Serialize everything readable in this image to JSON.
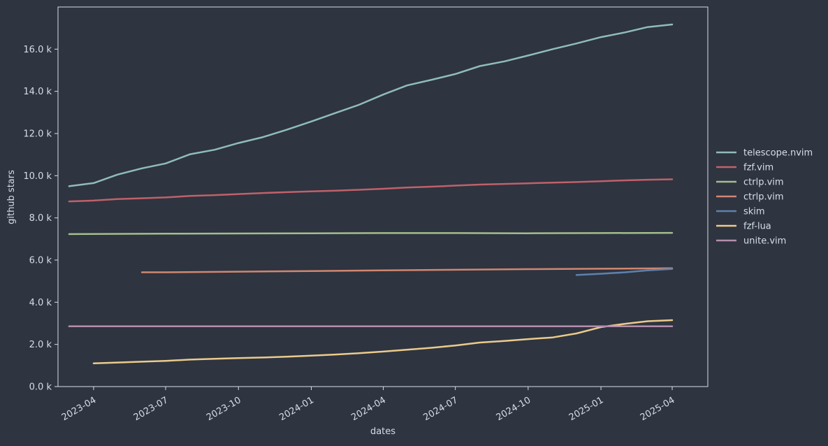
{
  "colors": {
    "background": "#2e3440",
    "axes": "#d8dee9",
    "text": "#d8dee9"
  },
  "chart_data": {
    "type": "line",
    "title": "",
    "xlabel": "dates",
    "ylabel": "github stars",
    "x_ticks": [
      "2023-04",
      "2023-07",
      "2023-10",
      "2024-01",
      "2024-04",
      "2024-07",
      "2024-10",
      "2025-01",
      "2025-04"
    ],
    "y_ticks": [
      "0.0 k",
      "2.0 k",
      "4.0 k",
      "6.0 k",
      "8.0 k",
      "10.0 k",
      "12.0 k",
      "14.0 k",
      "16.0 k"
    ],
    "xlim": [
      "2023-02-15",
      "2025-05-16"
    ],
    "ylim": [
      0,
      18000
    ],
    "grid": false,
    "legend_position": "right",
    "series": [
      {
        "name": "telescope.nvim",
        "color": "#8fbcbb",
        "points": [
          [
            "2023-03-01",
            9500
          ],
          [
            "2023-04-01",
            9650
          ],
          [
            "2023-05-01",
            10050
          ],
          [
            "2023-06-01",
            10350
          ],
          [
            "2023-07-01",
            10580
          ],
          [
            "2023-08-01",
            11020
          ],
          [
            "2023-09-01",
            11230
          ],
          [
            "2023-10-01",
            11550
          ],
          [
            "2023-11-01",
            11830
          ],
          [
            "2023-12-01",
            12180
          ],
          [
            "2024-01-01",
            12570
          ],
          [
            "2024-02-01",
            12980
          ],
          [
            "2024-03-01",
            13360
          ],
          [
            "2024-04-01",
            13850
          ],
          [
            "2024-05-01",
            14280
          ],
          [
            "2024-06-01",
            14550
          ],
          [
            "2024-07-01",
            14820
          ],
          [
            "2024-08-01",
            15200
          ],
          [
            "2024-09-01",
            15420
          ],
          [
            "2024-10-01",
            15700
          ],
          [
            "2024-11-01",
            16000
          ],
          [
            "2024-12-01",
            16270
          ],
          [
            "2025-01-01",
            16570
          ],
          [
            "2025-02-01",
            16800
          ],
          [
            "2025-03-01",
            17050
          ],
          [
            "2025-04-01",
            17170
          ]
        ]
      },
      {
        "name": "fzf.vim",
        "color": "#bf616a",
        "points": [
          [
            "2023-03-01",
            8780
          ],
          [
            "2023-04-01",
            8820
          ],
          [
            "2023-05-01",
            8890
          ],
          [
            "2023-06-01",
            8930
          ],
          [
            "2023-07-01",
            8970
          ],
          [
            "2023-08-01",
            9040
          ],
          [
            "2023-09-01",
            9080
          ],
          [
            "2023-10-01",
            9130
          ],
          [
            "2023-11-01",
            9180
          ],
          [
            "2023-12-01",
            9220
          ],
          [
            "2024-01-01",
            9260
          ],
          [
            "2024-02-01",
            9290
          ],
          [
            "2024-03-01",
            9330
          ],
          [
            "2024-04-01",
            9380
          ],
          [
            "2024-05-01",
            9440
          ],
          [
            "2024-06-01",
            9480
          ],
          [
            "2024-07-01",
            9530
          ],
          [
            "2024-08-01",
            9580
          ],
          [
            "2024-09-01",
            9610
          ],
          [
            "2024-10-01",
            9640
          ],
          [
            "2024-11-01",
            9670
          ],
          [
            "2024-12-01",
            9700
          ],
          [
            "2025-01-01",
            9740
          ],
          [
            "2025-02-01",
            9780
          ],
          [
            "2025-03-01",
            9810
          ],
          [
            "2025-04-01",
            9830
          ]
        ]
      },
      {
        "name": "ctrlp.vim",
        "color": "#a3be8c",
        "points": [
          [
            "2023-03-01",
            7230
          ],
          [
            "2023-07-01",
            7250
          ],
          [
            "2023-10-01",
            7260
          ],
          [
            "2024-01-01",
            7270
          ],
          [
            "2024-04-01",
            7280
          ],
          [
            "2024-07-01",
            7280
          ],
          [
            "2024-10-01",
            7270
          ],
          [
            "2025-01-01",
            7280
          ],
          [
            "2025-04-01",
            7290
          ]
        ]
      },
      {
        "name": "ctrlp.vim",
        "color": "#d08770",
        "points": [
          [
            "2023-06-01",
            5420
          ],
          [
            "2023-07-01",
            5420
          ],
          [
            "2023-10-01",
            5450
          ],
          [
            "2024-01-01",
            5480
          ],
          [
            "2024-04-01",
            5510
          ],
          [
            "2024-07-01",
            5540
          ],
          [
            "2024-10-01",
            5570
          ],
          [
            "2025-01-01",
            5590
          ],
          [
            "2025-04-01",
            5610
          ]
        ]
      },
      {
        "name": "skim",
        "color": "#5e81ac",
        "points": [
          [
            "2024-12-01",
            5290
          ],
          [
            "2025-01-01",
            5350
          ],
          [
            "2025-02-01",
            5420
          ],
          [
            "2025-03-01",
            5510
          ],
          [
            "2025-04-01",
            5580
          ]
        ]
      },
      {
        "name": "fzf-lua",
        "color": "#ebcb8b",
        "points": [
          [
            "2023-04-01",
            1100
          ],
          [
            "2023-05-01",
            1140
          ],
          [
            "2023-06-01",
            1180
          ],
          [
            "2023-07-01",
            1220
          ],
          [
            "2023-08-01",
            1280
          ],
          [
            "2023-09-01",
            1320
          ],
          [
            "2023-10-01",
            1350
          ],
          [
            "2023-11-01",
            1380
          ],
          [
            "2023-12-01",
            1420
          ],
          [
            "2024-01-01",
            1470
          ],
          [
            "2024-02-01",
            1520
          ],
          [
            "2024-03-01",
            1580
          ],
          [
            "2024-04-01",
            1660
          ],
          [
            "2024-05-01",
            1750
          ],
          [
            "2024-06-01",
            1840
          ],
          [
            "2024-07-01",
            1950
          ],
          [
            "2024-08-01",
            2090
          ],
          [
            "2024-09-01",
            2160
          ],
          [
            "2024-10-01",
            2250
          ],
          [
            "2024-11-01",
            2330
          ],
          [
            "2024-12-01",
            2520
          ],
          [
            "2025-01-01",
            2820
          ],
          [
            "2025-02-01",
            2980
          ],
          [
            "2025-03-01",
            3100
          ],
          [
            "2025-04-01",
            3150
          ]
        ]
      },
      {
        "name": "unite.vim",
        "color": "#b48ead",
        "points": [
          [
            "2023-03-01",
            2860
          ],
          [
            "2023-07-01",
            2860
          ],
          [
            "2023-10-01",
            2860
          ],
          [
            "2024-01-01",
            2860
          ],
          [
            "2024-04-01",
            2860
          ],
          [
            "2024-07-01",
            2860
          ],
          [
            "2024-10-01",
            2860
          ],
          [
            "2025-01-01",
            2860
          ],
          [
            "2025-04-01",
            2860
          ]
        ]
      }
    ]
  }
}
